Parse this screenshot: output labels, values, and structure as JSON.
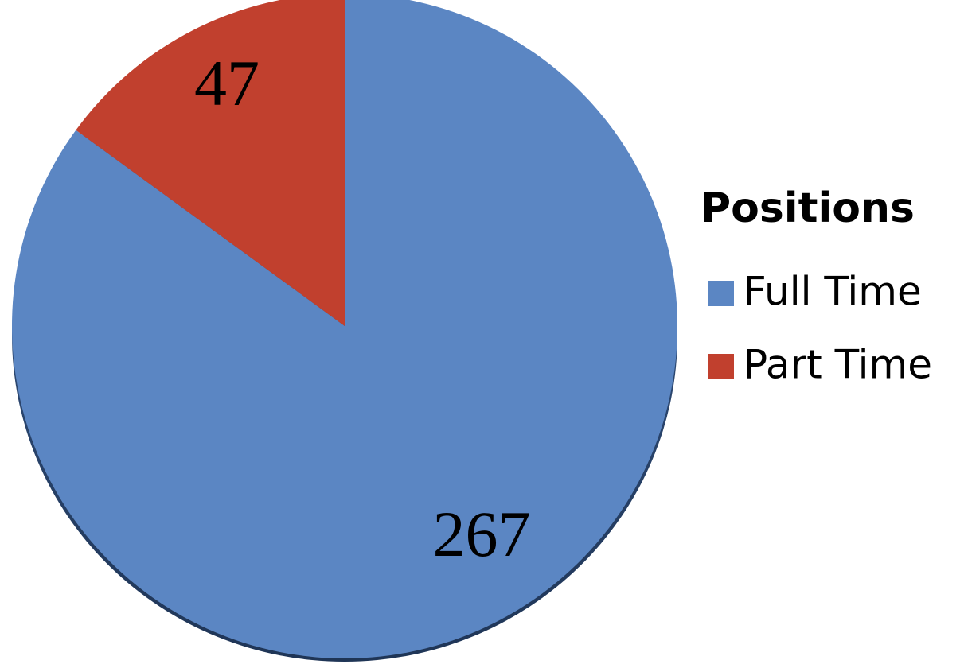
{
  "chart_data": {
    "type": "pie",
    "categories": [
      "Full Time",
      "Part Time"
    ],
    "values": [
      267,
      47
    ],
    "colors": [
      "#5b86c3",
      "#c1402e"
    ],
    "legend_title": "Positions",
    "legend": "right"
  }
}
